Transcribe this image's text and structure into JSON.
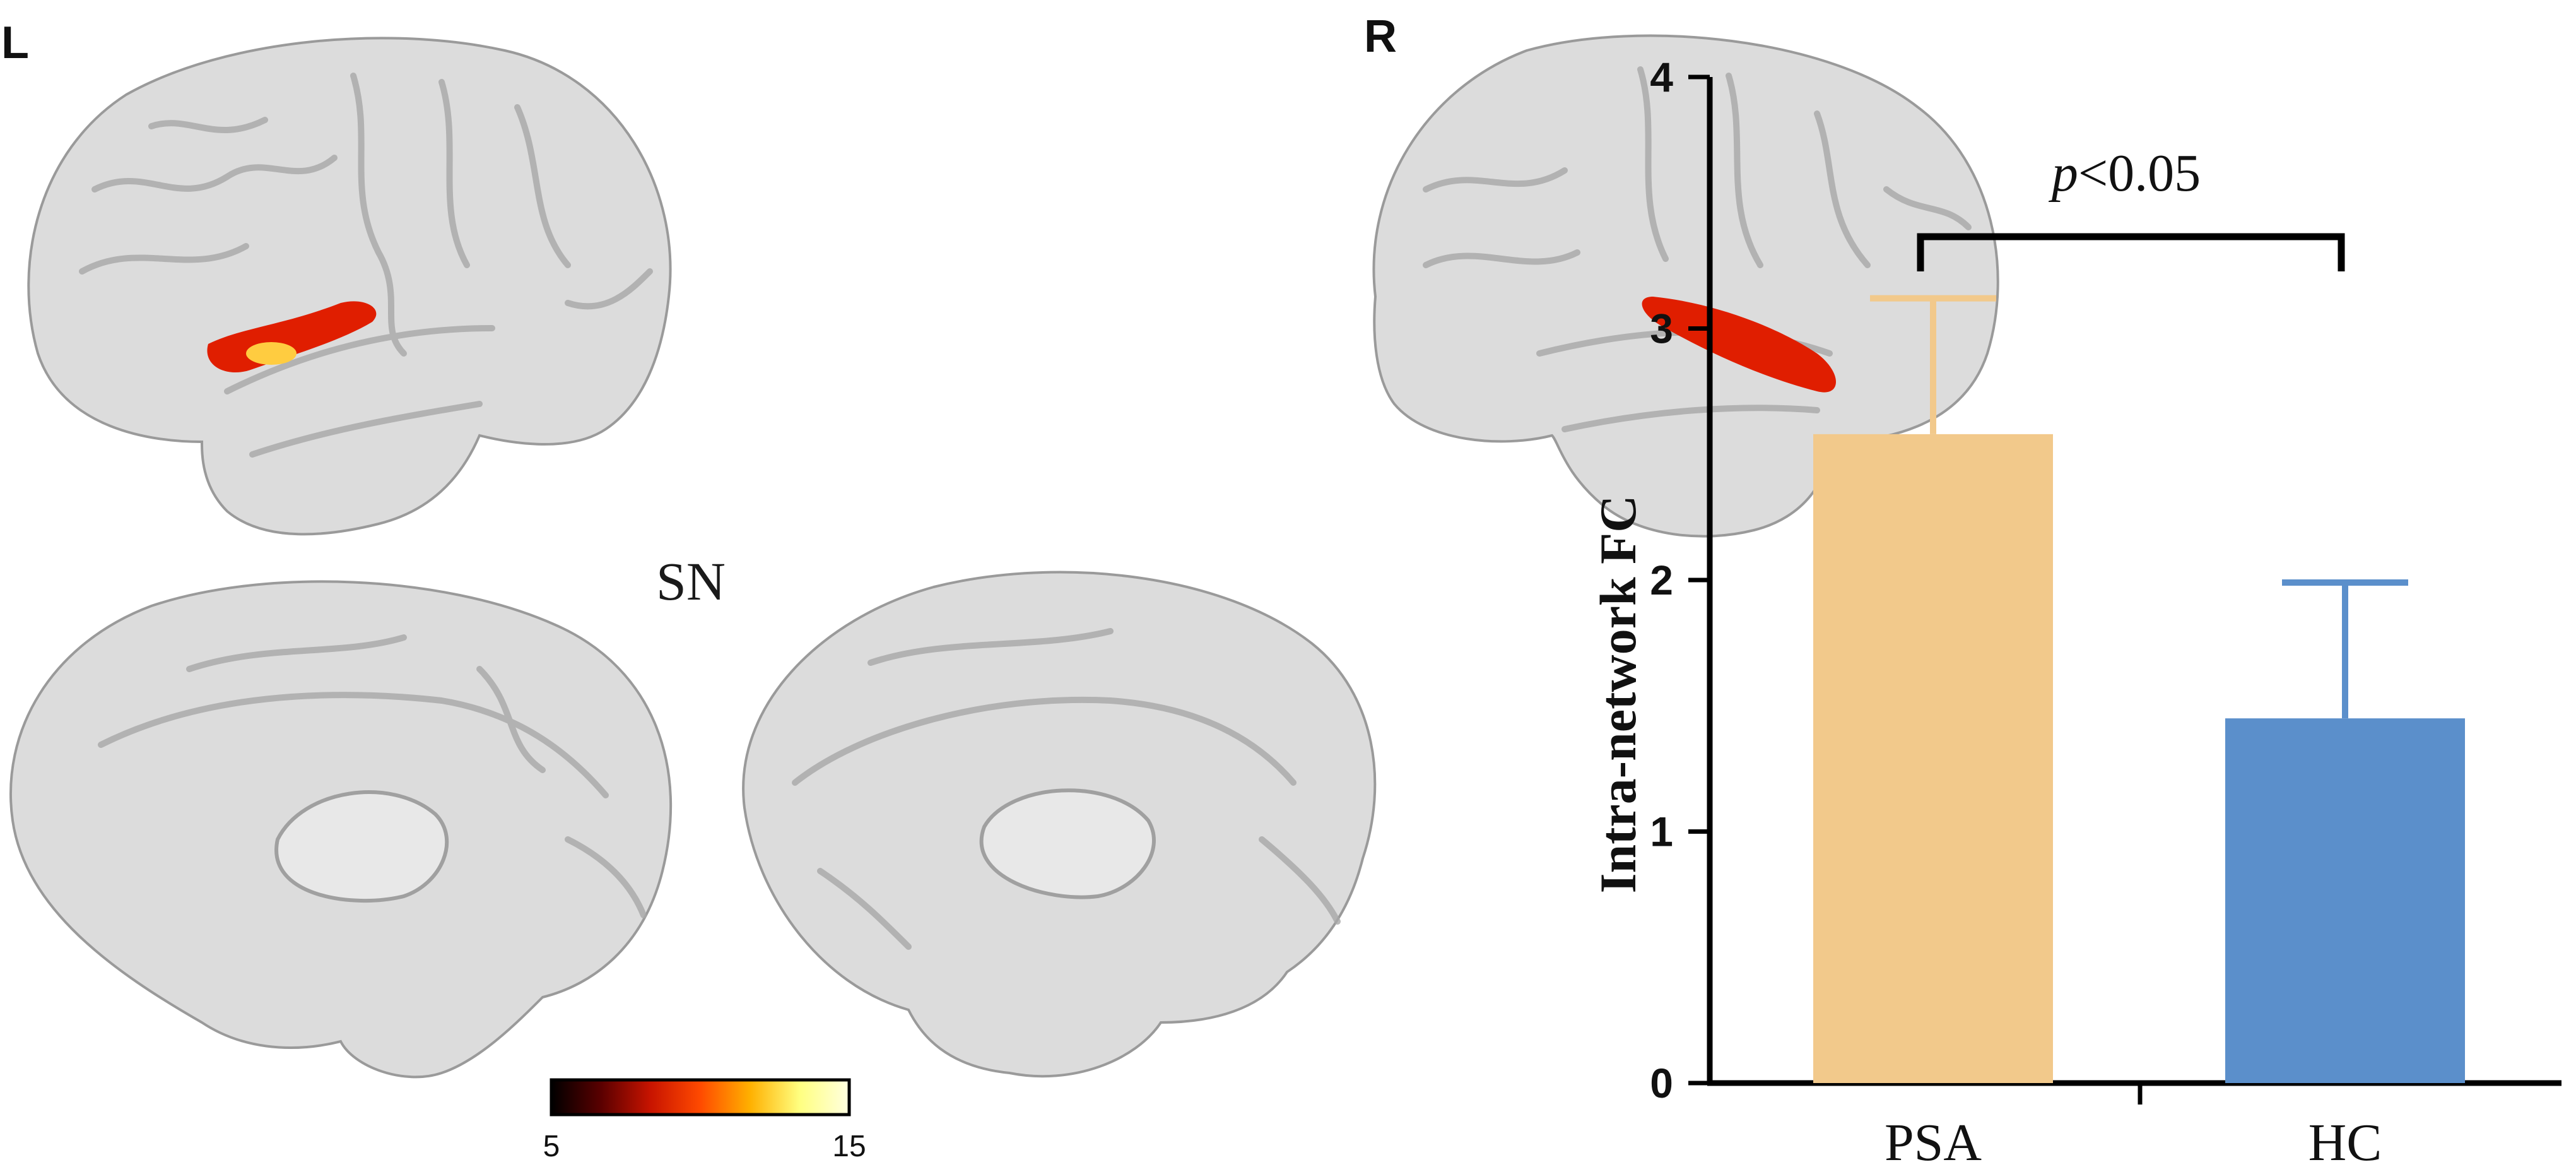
{
  "brain_panel": {
    "left_label": "L",
    "right_label": "R",
    "network_label": "SN",
    "colorbar": {
      "min_label": "5",
      "max_label": "15",
      "colors": [
        "#000000",
        "#5a0000",
        "#c81400",
        "#ff4a00",
        "#ffb000",
        "#ffff80",
        "#ffffe0"
      ]
    },
    "surface_color": "#dcdcdc",
    "activation_color": "#e01e00"
  },
  "chart_data": {
    "type": "bar",
    "categories": [
      "PSA",
      "HC"
    ],
    "values": [
      2.58,
      1.45
    ],
    "errors": [
      0.54,
      0.54
    ],
    "colors": [
      "#f2c98b",
      "#5b8fcb"
    ],
    "ylabel": "Intra-network FC",
    "ylim": [
      0,
      4
    ],
    "yticks": [
      "0",
      "1",
      "2",
      "3",
      "4"
    ],
    "significance": {
      "italic": "p",
      "text": "<0.05",
      "between": [
        0,
        1
      ]
    },
    "grid": false
  }
}
